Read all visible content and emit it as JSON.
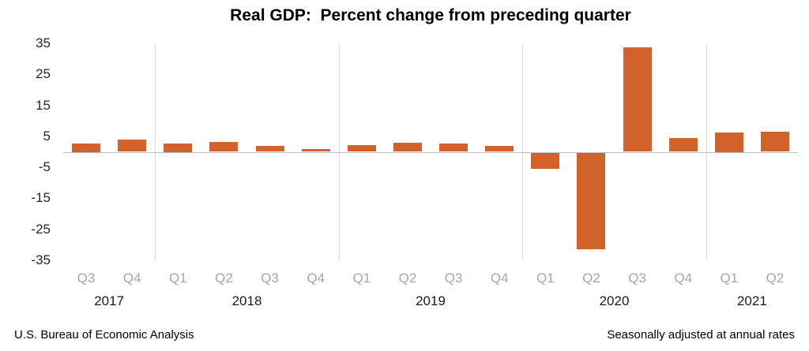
{
  "title": "Real GDP:  Percent change from preceding quarter",
  "footer": {
    "left": "U.S. Bureau of Economic Analysis",
    "right": "Seasonally adjusted at annual rates"
  },
  "colors": {
    "bar": "#d2622b",
    "separator": "#d9d9d9",
    "zero_line": "#bdbdbd",
    "quarter_label": "#a6a6a6",
    "year_label": "#1a1a1a",
    "tick_label": "#262626"
  },
  "chart_data": {
    "type": "bar",
    "title": "Real GDP:  Percent change from preceding quarter",
    "xlabel": "",
    "ylabel": "",
    "ylim": [
      -35,
      35
    ],
    "yticks": [
      35,
      25,
      15,
      5,
      -5,
      -15,
      -25,
      -35
    ],
    "grid": "vertical year separators and zero line only",
    "legend": "none",
    "categories": [
      "Q3",
      "Q4",
      "Q1",
      "Q2",
      "Q3",
      "Q4",
      "Q1",
      "Q2",
      "Q3",
      "Q4",
      "Q1",
      "Q2",
      "Q3",
      "Q4",
      "Q1",
      "Q2"
    ],
    "years": [
      {
        "label": "2017",
        "start": 0,
        "count": 2
      },
      {
        "label": "2018",
        "start": 2,
        "count": 4
      },
      {
        "label": "2019",
        "start": 6,
        "count": 4
      },
      {
        "label": "2020",
        "start": 10,
        "count": 4
      },
      {
        "label": "2021",
        "start": 14,
        "count": 2
      }
    ],
    "values": [
      2.8,
      3.9,
      2.8,
      3.2,
      1.9,
      0.9,
      2.2,
      3.0,
      2.6,
      1.9,
      -5.1,
      -31.2,
      33.8,
      4.5,
      6.3,
      6.5
    ]
  }
}
